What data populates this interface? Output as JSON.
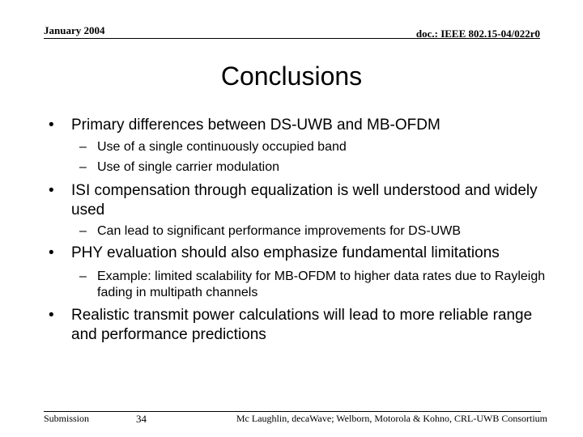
{
  "header": {
    "date": "January 2004",
    "doc_id": "doc.: IEEE 802.15-04/022r0"
  },
  "slide": {
    "title": "Conclusions",
    "bullets": [
      {
        "text": "Primary differences between DS-UWB and MB-OFDM",
        "subs": [
          "Use of a single continuously occupied band",
          "Use of single carrier modulation"
        ]
      },
      {
        "text": "ISI compensation through equalization is well understood and widely used",
        "subs": [
          "Can lead to significant performance improvements for DS-UWB"
        ]
      },
      {
        "text": "PHY evaluation should also emphasize fundamental limitations",
        "subs": [
          "Example: limited scalability for MB-OFDM to higher data rates due to Rayleigh fading in multipath channels"
        ]
      },
      {
        "text": "Realistic transmit power calculations will lead to more reliable range and performance predictions",
        "subs": []
      }
    ],
    "bullet_glyph": "•",
    "sub_glyph": "–"
  },
  "footer": {
    "submission": "Submission",
    "page": "34",
    "authors": "Mc Laughlin, decaWave; Welborn, Motorola & Kohno, CRL-UWB Consortium"
  }
}
